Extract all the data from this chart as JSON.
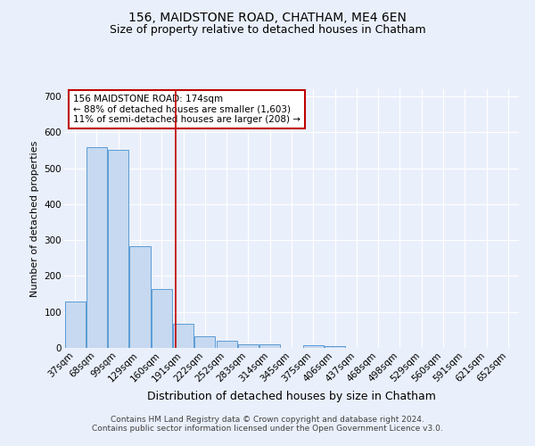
{
  "title": "156, MAIDSTONE ROAD, CHATHAM, ME4 6EN",
  "subtitle": "Size of property relative to detached houses in Chatham",
  "xlabel": "Distribution of detached houses by size in Chatham",
  "ylabel": "Number of detached properties",
  "bin_labels": [
    "37sqm",
    "68sqm",
    "99sqm",
    "129sqm",
    "160sqm",
    "191sqm",
    "222sqm",
    "252sqm",
    "283sqm",
    "314sqm",
    "345sqm",
    "375sqm",
    "406sqm",
    "437sqm",
    "468sqm",
    "498sqm",
    "529sqm",
    "560sqm",
    "591sqm",
    "621sqm",
    "652sqm"
  ],
  "bar_values": [
    128,
    558,
    552,
    283,
    163,
    68,
    33,
    20,
    9,
    10,
    0,
    8,
    4,
    0,
    0,
    0,
    0,
    0,
    0,
    0,
    0
  ],
  "bar_color": "#c6d9f0",
  "bar_edge_color": "#5b9bd5",
  "vline_x": 4.65,
  "vline_color": "#c00000",
  "annotation_text": "156 MAIDSTONE ROAD: 174sqm\n← 88% of detached houses are smaller (1,603)\n11% of semi-detached houses are larger (208) →",
  "annotation_box_color": "#ffffff",
  "annotation_box_edge_color": "#c00000",
  "background_color": "#eaf0fb",
  "grid_color": "#ffffff",
  "ylim": [
    0,
    720
  ],
  "yticks": [
    0,
    100,
    200,
    300,
    400,
    500,
    600,
    700
  ],
  "footer": "Contains HM Land Registry data © Crown copyright and database right 2024.\nContains public sector information licensed under the Open Government Licence v3.0.",
  "title_fontsize": 10,
  "subtitle_fontsize": 9,
  "xlabel_fontsize": 9,
  "ylabel_fontsize": 8,
  "tick_fontsize": 7.5,
  "annotation_fontsize": 7.5,
  "footer_fontsize": 6.5
}
